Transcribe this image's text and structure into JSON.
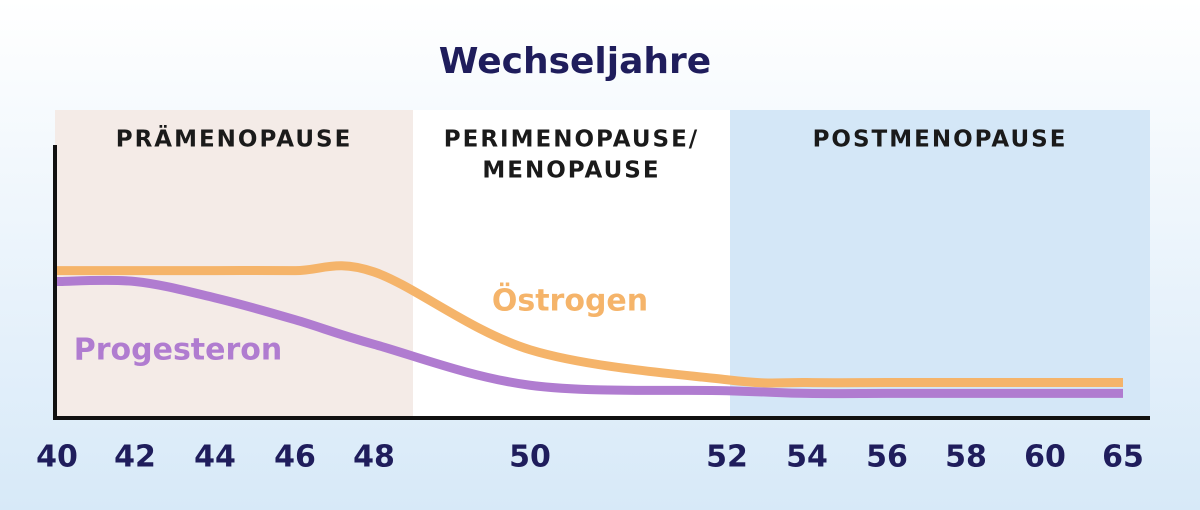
{
  "chart_data": {
    "type": "line",
    "title": "Wechseljahre",
    "categories": [
      "40",
      "42",
      "44",
      "46",
      "48",
      "50",
      "52",
      "54",
      "56",
      "58",
      "60",
      "65"
    ],
    "ylim": [
      0,
      100
    ],
    "series": [
      {
        "name": "Östrogen",
        "color": "#f5b46a",
        "values": [
          54,
          54,
          54,
          54,
          53.5,
          25,
          14,
          13,
          13,
          13,
          13,
          13
        ]
      },
      {
        "name": "Progesteron",
        "color": "#b07cd0",
        "values": [
          50,
          50,
          44,
          36,
          27,
          12,
          10,
          9,
          9,
          9,
          9,
          9
        ]
      }
    ],
    "phases": [
      {
        "label": [
          "PRÄMENOPAUSE"
        ],
        "color": "#f4ebe7"
      },
      {
        "label": [
          "PERIMENOPAUSE/",
          "MENOPAUSE"
        ],
        "color": "#ffffff"
      },
      {
        "label": [
          "POSTMENOPAUSE"
        ],
        "color": "#d4e7f7"
      }
    ]
  }
}
